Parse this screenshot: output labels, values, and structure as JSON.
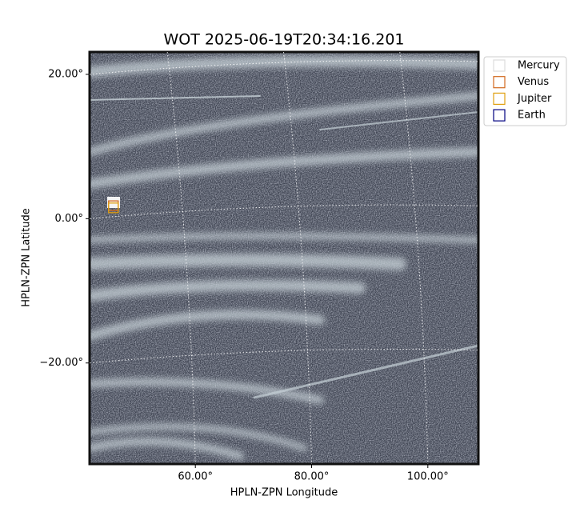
{
  "chart_data": {
    "type": "image",
    "title": "WOT 2025-06-19T20:34:16.201",
    "x_label": "HPLN-ZPN Longitude",
    "y_label": "HPLN-ZPN Latitude",
    "xlim": [
      41.8,
      108.7
    ],
    "ylim": [
      -34.0,
      23.1
    ],
    "xticks": [
      {
        "value": 60,
        "label": "60.00°"
      },
      {
        "value": 80,
        "label": "80.00°"
      },
      {
        "value": 100,
        "label": "100.00°"
      }
    ],
    "yticks": [
      {
        "value": 20,
        "label": "20.00°"
      },
      {
        "value": 0,
        "label": "0.00°"
      },
      {
        "value": -20,
        "label": "−20.00°"
      }
    ],
    "grid": true,
    "legend": "upper-right-outside",
    "series": [
      {
        "name": "Mercury",
        "color": "#dddddd",
        "x": [],
        "y": []
      },
      {
        "name": "Venus",
        "color": "#d2691e",
        "x": [
          45.9
        ],
        "y": [
          1.8
        ]
      },
      {
        "name": "Jupiter",
        "color": "#e0a010",
        "x": [
          45.9
        ],
        "y": [
          1.5
        ]
      },
      {
        "name": "Earth",
        "color": "#000080",
        "x": [],
        "y": []
      }
    ]
  }
}
